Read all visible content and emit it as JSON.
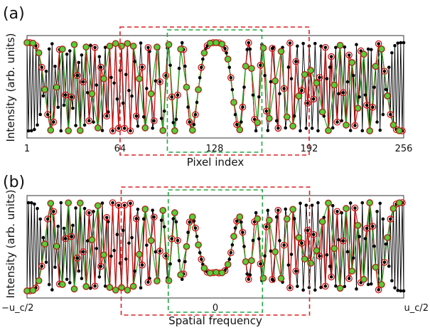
{
  "chart_data": [
    {
      "type": "line",
      "panel_label": "(a)",
      "xlabel": "Pixel index",
      "ylabel": "Intensity (arb. units)",
      "xlim": [
        1,
        256
      ],
      "x_ticks": [
        1,
        64,
        128,
        192,
        256
      ],
      "x_tick_labels": [
        "1",
        "64",
        "128",
        "192",
        "256"
      ],
      "ylim": [
        0,
        1
      ],
      "curve": "chirp",
      "n_points": 256,
      "series": [
        {
          "name": "",
          "color": "#000000",
          "marker": "black-dot",
          "sampling_step": 1
        },
        {
          "name": "",
          "color": "#cc1111",
          "marker": "red-ring",
          "sampling_step": 2
        },
        {
          "name": "",
          "color": "#22aa22",
          "marker": "green-dot",
          "sampling_step": 4
        }
      ],
      "boxes": [
        {
          "color": "#dd2222",
          "style": "dashed",
          "x_range": [
            64,
            192
          ]
        },
        {
          "color": "#22aa44",
          "style": "dashed",
          "x_range": [
            96,
            160
          ]
        }
      ]
    },
    {
      "type": "line",
      "panel_label": "(b)",
      "xlabel": "Spatial frequency",
      "ylabel": "Intensity (arb. units)",
      "xlim": [
        -0.5,
        0.5
      ],
      "x_ticks": [
        -0.5,
        0,
        0.5
      ],
      "x_tick_labels": [
        "−u_c/2",
        "0",
        "u_c/2"
      ],
      "ylim": [
        0,
        1
      ],
      "curve": "chirp-inverted",
      "n_points": 256,
      "series": [
        {
          "name": "",
          "color": "#000000",
          "marker": "black-dot",
          "sampling_step": 1
        },
        {
          "name": "",
          "color": "#cc1111",
          "marker": "red-ring",
          "sampling_step": 2
        },
        {
          "name": "",
          "color": "#22aa22",
          "marker": "green-dot",
          "sampling_step": 4
        }
      ],
      "boxes": [
        {
          "color": "#dd2222",
          "style": "dashed",
          "x_range": [
            -0.25,
            0.25
          ]
        },
        {
          "color": "#22aa44",
          "style": "dashed",
          "x_range": [
            -0.125,
            0.125
          ]
        }
      ]
    }
  ]
}
